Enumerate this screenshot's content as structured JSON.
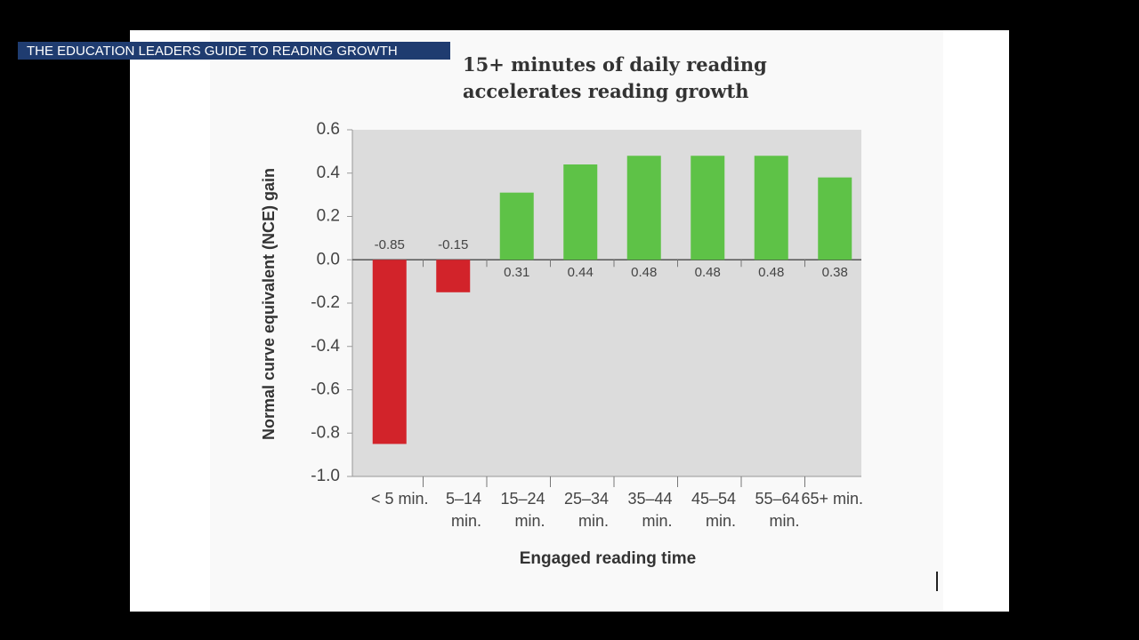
{
  "banner": "THE EDUCATION LEADERS GUIDE TO READING GROWTH",
  "chart_data": {
    "type": "bar",
    "title": "15+ minutes of daily reading accelerates reading growth",
    "y_label": "Normal curve equivalent (NCE) gain",
    "x_label": "Engaged reading time",
    "categories": [
      "< 5 min.",
      "5–14 min.",
      "15–24 min.",
      "25–34 min.",
      "35–44 min.",
      "45–54 min.",
      "55–64 min.",
      "65+ min."
    ],
    "values": [
      -0.85,
      -0.15,
      0.31,
      0.44,
      0.48,
      0.48,
      0.48,
      0.38
    ],
    "colors": [
      "#d2232a",
      "#d2232a",
      "#5ec247",
      "#5ec247",
      "#5ec247",
      "#5ec247",
      "#5ec247",
      "#5ec247"
    ],
    "ylim": [
      -1.0,
      0.6
    ],
    "yticks": [
      0.6,
      0.4,
      0.2,
      {
        "value": 0,
        "label": "0.0"
      },
      -0.2,
      -0.4,
      -0.6,
      -0.8,
      {
        "value": -1,
        "label": "-1.0"
      }
    ]
  }
}
